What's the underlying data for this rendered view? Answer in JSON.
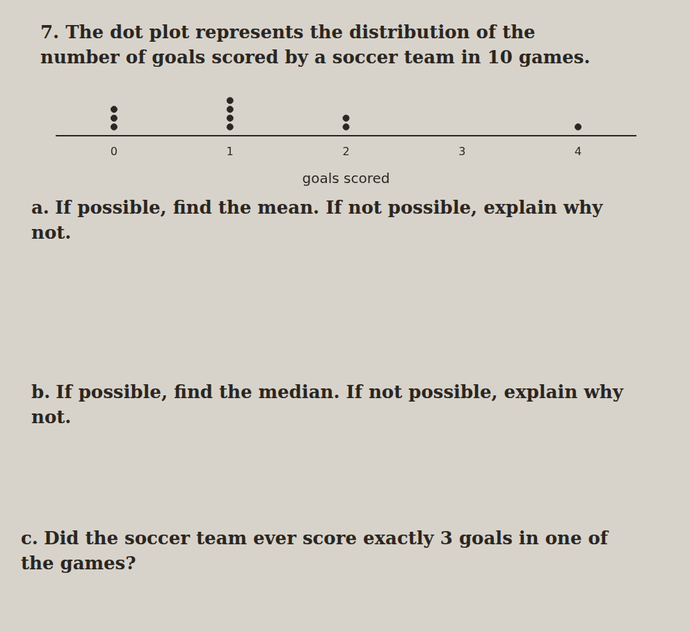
{
  "problem": {
    "number": "7.",
    "text": "The dot plot represents the distribution of the number of goals scored by a soccer team in 10 games."
  },
  "chart_data": {
    "type": "dot",
    "x_label": "goals scored",
    "x": [
      0,
      1,
      2,
      3,
      4
    ],
    "values": [
      3,
      4,
      2,
      0,
      1
    ],
    "xlim": [
      -0.5,
      4.5
    ],
    "xticks": [
      0,
      1,
      2,
      3,
      4
    ],
    "color": "#2b2724",
    "grid": false,
    "tick_labels": "x"
  },
  "questions": [
    {
      "label": "a.",
      "text": "If possible, find the mean. If not possible, explain why not."
    },
    {
      "label": "b.",
      "text": "If possible, find the median. If not possible, explain why not."
    },
    {
      "label": "c.",
      "text": "Did the soccer team ever score exactly 3 goals in one of the games?"
    }
  ]
}
